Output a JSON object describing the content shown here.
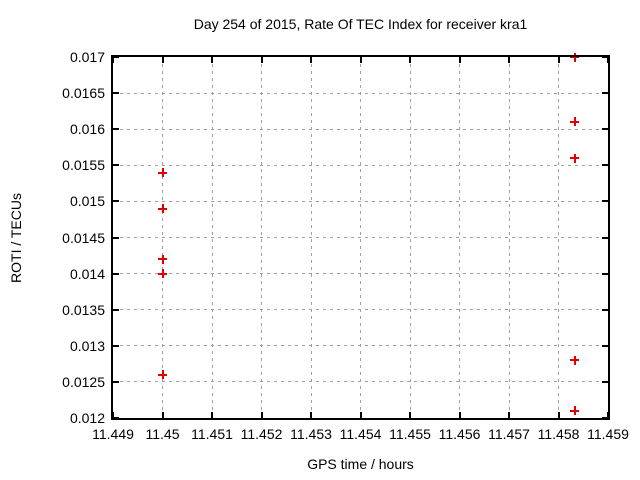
{
  "chart_data": {
    "type": "scatter",
    "title": "Day 254 of 2015, Rate Of TEC Index for receiver kra1",
    "xlabel": "GPS time / hours",
    "ylabel": "ROTI / TECUs",
    "xlim": [
      11.449,
      11.459
    ],
    "ylim": [
      0.012,
      0.017
    ],
    "x_tick_values": [
      11.449,
      11.45,
      11.451,
      11.452,
      11.453,
      11.454,
      11.455,
      11.456,
      11.457,
      11.458,
      11.459
    ],
    "x_tick_labels": [
      "11.449",
      "11.45",
      "11.451",
      "11.452",
      "11.453",
      "11.454",
      "11.455",
      "11.456",
      "11.457",
      "11.458",
      "11.459"
    ],
    "y_tick_values": [
      0.012,
      0.0125,
      0.013,
      0.0135,
      0.014,
      0.0145,
      0.015,
      0.0155,
      0.016,
      0.0165,
      0.017
    ],
    "y_tick_labels": [
      "0.012",
      "0.0125",
      "0.013",
      "0.0135",
      "0.014",
      "0.0145",
      "0.015",
      "0.0155",
      "0.016",
      "0.0165",
      "0.017"
    ],
    "grid": true,
    "grid_style": "dashed",
    "legend": "none",
    "background_color": "#ffffff",
    "axis_color": "#000000",
    "grid_color": "#9e9e9e",
    "series": [
      {
        "name": "ROTI",
        "marker": "plus",
        "color": "#e00000",
        "points": [
          {
            "x": 11.45,
            "y": 0.0154
          },
          {
            "x": 11.45,
            "y": 0.0149
          },
          {
            "x": 11.45,
            "y": 0.0142
          },
          {
            "x": 11.45,
            "y": 0.014
          },
          {
            "x": 11.45,
            "y": 0.0126
          },
          {
            "x": 11.458333,
            "y": 0.017
          },
          {
            "x": 11.458333,
            "y": 0.0161
          },
          {
            "x": 11.458333,
            "y": 0.0156
          },
          {
            "x": 11.458333,
            "y": 0.0128
          },
          {
            "x": 11.458333,
            "y": 0.0121
          }
        ]
      }
    ]
  }
}
